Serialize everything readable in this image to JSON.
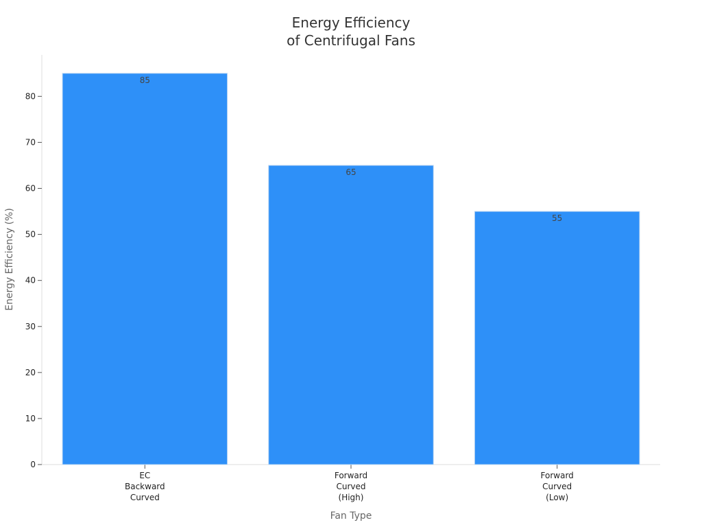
{
  "chart_data": {
    "type": "bar",
    "title": [
      "Energy Efficiency",
      "of Centrifugal Fans"
    ],
    "xlabel": "Fan Type",
    "ylabel": "Energy Efficiency (%)",
    "categories": [
      [
        "EC",
        "Backward",
        "Curved"
      ],
      [
        "Forward",
        "Curved",
        "(High)"
      ],
      [
        "Forward",
        "Curved",
        "(Low)"
      ]
    ],
    "values": [
      85,
      65,
      55
    ],
    "value_labels": [
      "85",
      "65",
      "55"
    ],
    "ylim": [
      0,
      89
    ],
    "yticks": [
      0,
      10,
      20,
      30,
      40,
      50,
      60,
      70,
      80
    ],
    "bar_color": "#2E90F8",
    "bar_edge_color": "#BFD8F2",
    "grid": false,
    "legend": "none"
  }
}
